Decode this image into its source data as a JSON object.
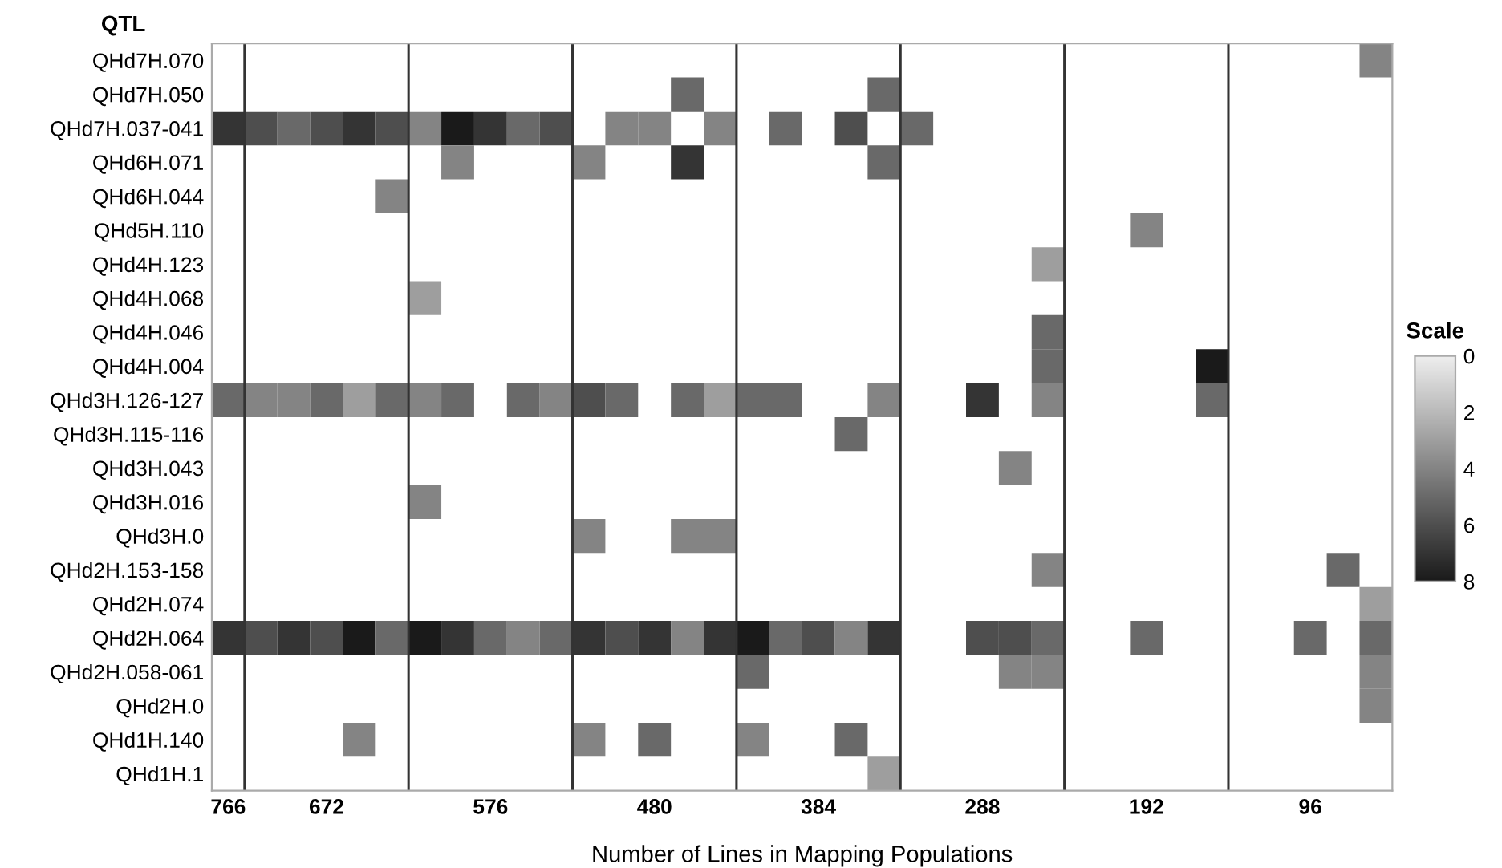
{
  "chart_data": {
    "type": "heatmap",
    "ylabel": "QTL",
    "xlabel": "Number of Lines in Mapping Populations",
    "clabel": "Scale",
    "clim": [
      0,
      8
    ],
    "cticks": [
      0,
      2,
      4,
      6,
      8
    ],
    "categories": [
      "766",
      null,
      null,
      "672",
      null,
      null,
      null,
      null,
      "576",
      null,
      null,
      null,
      null,
      "480",
      null,
      null,
      null,
      null,
      "384",
      null,
      null,
      null,
      null,
      "288",
      null,
      null,
      null,
      null,
      "192",
      null,
      null,
      null,
      null,
      "96",
      null,
      null
    ],
    "y_categories": [
      "QHd7H.070",
      "QHd7H.050",
      "QHd7H.037-041",
      "QHd6H.071",
      "QHd6H.044",
      "QHd5H.110",
      "QHd4H.123",
      "QHd4H.068",
      "QHd4H.046",
      "QHd4H.004",
      "QHd3H.126-127",
      "QHd3H.115-116",
      "QHd3H.043",
      "QHd3H.016",
      "QHd3H.0",
      "QHd2H.153-158",
      "QHd2H.074",
      "QHd2H.064",
      "QHd2H.058-061",
      "QHd2H.0",
      "QHd1H.140",
      "QHd1H.1"
    ],
    "cells": [
      [
        null,
        null,
        null,
        null,
        null,
        null,
        null,
        null,
        null,
        null,
        null,
        null,
        null,
        null,
        null,
        null,
        null,
        null,
        null,
        null,
        null,
        null,
        null,
        null,
        null,
        null,
        null,
        null,
        null,
        null,
        null,
        null,
        null,
        null,
        null,
        4
      ],
      [
        null,
        null,
        null,
        null,
        null,
        null,
        null,
        null,
        null,
        null,
        null,
        null,
        null,
        null,
        5,
        null,
        null,
        null,
        null,
        null,
        5,
        null,
        null,
        null,
        null,
        null,
        null,
        null,
        null,
        null,
        null,
        null,
        null,
        null,
        null,
        null
      ],
      [
        7,
        6,
        5,
        6,
        7,
        6,
        4,
        8,
        7,
        5,
        6,
        null,
        4,
        4,
        null,
        4,
        null,
        5,
        null,
        6,
        null,
        5,
        null,
        null,
        null,
        null,
        null,
        null,
        null,
        null,
        null,
        null,
        null,
        null,
        null,
        null
      ],
      [
        null,
        null,
        null,
        null,
        null,
        null,
        null,
        4,
        null,
        null,
        null,
        4,
        null,
        null,
        7,
        null,
        null,
        null,
        null,
        null,
        5,
        null,
        null,
        null,
        null,
        null,
        null,
        null,
        null,
        null,
        null,
        null,
        null,
        null,
        null,
        null
      ],
      [
        null,
        null,
        null,
        null,
        null,
        4,
        null,
        null,
        null,
        null,
        null,
        null,
        null,
        null,
        null,
        null,
        null,
        null,
        null,
        null,
        null,
        null,
        null,
        null,
        null,
        null,
        null,
        null,
        null,
        null,
        null,
        null,
        null,
        null,
        null,
        null
      ],
      [
        null,
        null,
        null,
        null,
        null,
        null,
        null,
        null,
        null,
        null,
        null,
        null,
        null,
        null,
        null,
        null,
        null,
        null,
        null,
        null,
        null,
        null,
        null,
        null,
        null,
        null,
        null,
        null,
        4,
        null,
        null,
        null,
        null,
        null,
        null,
        null
      ],
      [
        null,
        null,
        null,
        null,
        null,
        null,
        null,
        null,
        null,
        null,
        null,
        null,
        null,
        null,
        null,
        null,
        null,
        null,
        null,
        null,
        null,
        null,
        null,
        null,
        null,
        3,
        null,
        null,
        null,
        null,
        null,
        null,
        null,
        null,
        null,
        null
      ],
      [
        null,
        null,
        null,
        null,
        null,
        null,
        3,
        null,
        null,
        null,
        null,
        null,
        null,
        null,
        null,
        null,
        null,
        null,
        null,
        null,
        null,
        null,
        null,
        null,
        null,
        null,
        null,
        null,
        null,
        null,
        null,
        null,
        null,
        null,
        null,
        null
      ],
      [
        null,
        null,
        null,
        null,
        null,
        null,
        null,
        null,
        null,
        null,
        null,
        null,
        null,
        null,
        null,
        null,
        null,
        null,
        null,
        null,
        null,
        null,
        null,
        null,
        null,
        5,
        null,
        null,
        null,
        null,
        null,
        null,
        null,
        null,
        null,
        null
      ],
      [
        null,
        null,
        null,
        null,
        null,
        null,
        null,
        null,
        null,
        null,
        null,
        null,
        null,
        null,
        null,
        null,
        null,
        null,
        null,
        null,
        null,
        null,
        null,
        null,
        null,
        5,
        null,
        null,
        null,
        null,
        8,
        null,
        null,
        null,
        null,
        null
      ],
      [
        5,
        4,
        4,
        5,
        3,
        5,
        4,
        5,
        null,
        5,
        4,
        6,
        5,
        null,
        5,
        3,
        5,
        5,
        null,
        null,
        4,
        null,
        null,
        7,
        null,
        4,
        null,
        null,
        null,
        null,
        5,
        null,
        null,
        null,
        null,
        null
      ],
      [
        null,
        null,
        null,
        null,
        null,
        null,
        null,
        null,
        null,
        null,
        null,
        null,
        null,
        null,
        null,
        null,
        null,
        null,
        null,
        5,
        null,
        null,
        null,
        null,
        null,
        null,
        null,
        null,
        null,
        null,
        null,
        null,
        null,
        null,
        null,
        null
      ],
      [
        null,
        null,
        null,
        null,
        null,
        null,
        null,
        null,
        null,
        null,
        null,
        null,
        null,
        null,
        null,
        null,
        null,
        null,
        null,
        null,
        null,
        null,
        null,
        null,
        4,
        null,
        null,
        null,
        null,
        null,
        null,
        null,
        null,
        null,
        null,
        null
      ],
      [
        null,
        null,
        null,
        null,
        null,
        null,
        4,
        null,
        null,
        null,
        null,
        null,
        null,
        null,
        null,
        null,
        null,
        null,
        null,
        null,
        null,
        null,
        null,
        null,
        null,
        null,
        null,
        null,
        null,
        null,
        null,
        null,
        null,
        null,
        null,
        null
      ],
      [
        null,
        null,
        null,
        null,
        null,
        null,
        null,
        null,
        null,
        null,
        null,
        4,
        null,
        null,
        4,
        4,
        null,
        null,
        null,
        null,
        null,
        null,
        null,
        null,
        null,
        null,
        null,
        null,
        null,
        null,
        null,
        null,
        null,
        null,
        null,
        null
      ],
      [
        null,
        null,
        null,
        null,
        null,
        null,
        null,
        null,
        null,
        null,
        null,
        null,
        null,
        null,
        null,
        null,
        null,
        null,
        null,
        null,
        null,
        null,
        null,
        null,
        null,
        4,
        null,
        null,
        null,
        null,
        null,
        null,
        null,
        null,
        5,
        null
      ],
      [
        null,
        null,
        null,
        null,
        null,
        null,
        null,
        null,
        null,
        null,
        null,
        null,
        null,
        null,
        null,
        null,
        null,
        null,
        null,
        null,
        null,
        null,
        null,
        null,
        null,
        null,
        null,
        null,
        null,
        null,
        null,
        null,
        null,
        null,
        null,
        3
      ],
      [
        7,
        6,
        7,
        6,
        8,
        5,
        8,
        7,
        5,
        4,
        5,
        7,
        6,
        7,
        4,
        7,
        8,
        5,
        6,
        4,
        7,
        null,
        null,
        6,
        6,
        5,
        null,
        null,
        5,
        null,
        null,
        null,
        null,
        5,
        null,
        5
      ],
      [
        null,
        null,
        null,
        null,
        null,
        null,
        null,
        null,
        null,
        null,
        null,
        null,
        null,
        null,
        null,
        null,
        5,
        null,
        null,
        null,
        null,
        null,
        null,
        null,
        4,
        4,
        null,
        null,
        null,
        null,
        null,
        null,
        null,
        null,
        null,
        4
      ],
      [
        null,
        null,
        null,
        null,
        null,
        null,
        null,
        null,
        null,
        null,
        null,
        null,
        null,
        null,
        null,
        null,
        null,
        null,
        null,
        null,
        null,
        null,
        null,
        null,
        null,
        null,
        null,
        null,
        null,
        null,
        null,
        null,
        null,
        null,
        null,
        4
      ],
      [
        null,
        null,
        null,
        null,
        4,
        null,
        null,
        null,
        null,
        null,
        null,
        4,
        null,
        5,
        null,
        null,
        4,
        null,
        null,
        5,
        null,
        null,
        null,
        null,
        null,
        null,
        null,
        null,
        null,
        null,
        null,
        null,
        null,
        null,
        null,
        null
      ],
      [
        null,
        null,
        null,
        null,
        null,
        null,
        null,
        null,
        null,
        null,
        null,
        null,
        null,
        null,
        null,
        null,
        null,
        null,
        null,
        null,
        3,
        null,
        null,
        null,
        null,
        null,
        null,
        null,
        null,
        null,
        null,
        null,
        null,
        null,
        null,
        null
      ]
    ]
  }
}
